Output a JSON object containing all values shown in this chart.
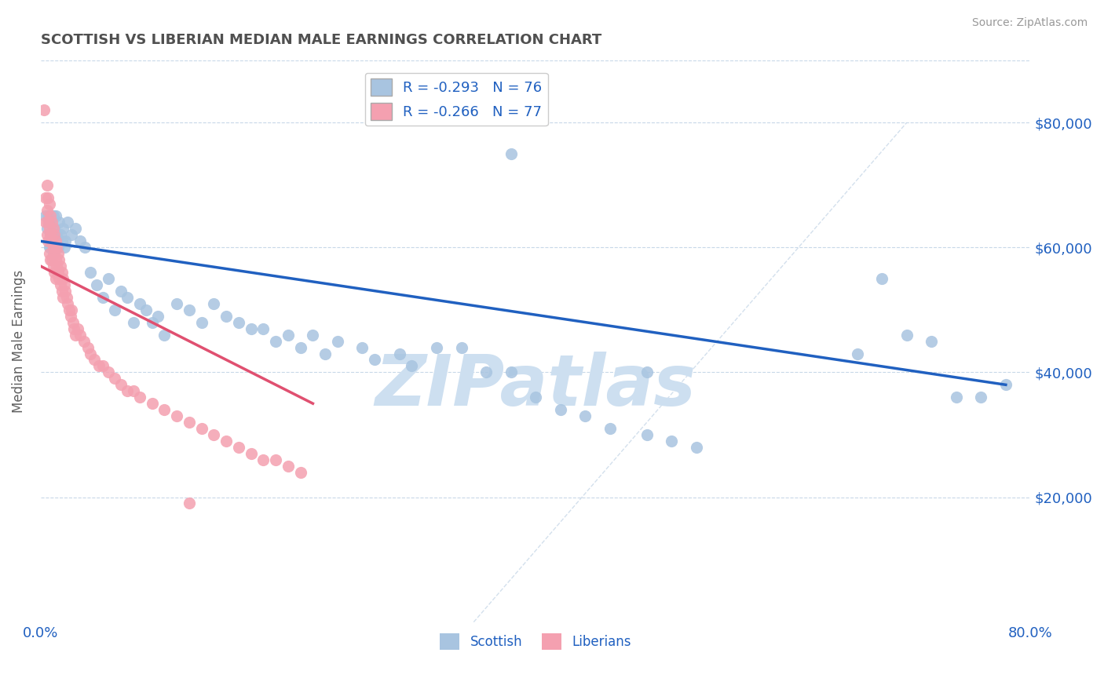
{
  "title": "SCOTTISH VS LIBERIAN MEDIAN MALE EARNINGS CORRELATION CHART",
  "source": "Source: ZipAtlas.com",
  "ylabel": "Median Male Earnings",
  "xlim": [
    0.0,
    0.8
  ],
  "ylim": [
    0,
    90000
  ],
  "yticks": [
    0,
    20000,
    40000,
    60000,
    80000
  ],
  "ytick_labels": [
    "",
    "$20,000",
    "$40,000",
    "$60,000",
    "$80,000"
  ],
  "xticks": [
    0.0,
    0.1,
    0.2,
    0.3,
    0.4,
    0.5,
    0.6,
    0.7,
    0.8
  ],
  "xtick_labels": [
    "0.0%",
    "",
    "",
    "",
    "",
    "",
    "",
    "",
    "80.0%"
  ],
  "scottish_R": -0.293,
  "scottish_N": 76,
  "liberian_R": -0.266,
  "liberian_N": 77,
  "scottish_color": "#a8c4e0",
  "scottish_line_color": "#2060c0",
  "liberian_color": "#f4a0b0",
  "liberian_line_color": "#e05070",
  "legend_text_color": "#2060c0",
  "title_color": "#505050",
  "watermark": "ZIPatlas",
  "watermark_color": "#cddff0",
  "scottish_x": [
    0.004,
    0.005,
    0.006,
    0.007,
    0.007,
    0.008,
    0.008,
    0.009,
    0.01,
    0.01,
    0.011,
    0.012,
    0.013,
    0.014,
    0.015,
    0.016,
    0.017,
    0.018,
    0.019,
    0.02,
    0.022,
    0.025,
    0.028,
    0.032,
    0.036,
    0.04,
    0.045,
    0.05,
    0.055,
    0.06,
    0.065,
    0.07,
    0.075,
    0.08,
    0.085,
    0.09,
    0.095,
    0.1,
    0.11,
    0.12,
    0.13,
    0.14,
    0.15,
    0.16,
    0.17,
    0.18,
    0.19,
    0.2,
    0.21,
    0.22,
    0.23,
    0.24,
    0.26,
    0.27,
    0.29,
    0.3,
    0.32,
    0.34,
    0.36,
    0.38,
    0.4,
    0.42,
    0.44,
    0.46,
    0.49,
    0.51,
    0.53,
    0.38,
    0.66,
    0.68,
    0.7,
    0.72,
    0.74,
    0.49,
    0.76,
    0.78
  ],
  "scottish_y": [
    65000,
    63000,
    65000,
    64000,
    60000,
    62000,
    60000,
    61000,
    59000,
    65000,
    63000,
    65000,
    62000,
    60000,
    64000,
    62000,
    61000,
    63000,
    60000,
    61000,
    64000,
    62000,
    63000,
    61000,
    60000,
    56000,
    54000,
    52000,
    55000,
    50000,
    53000,
    52000,
    48000,
    51000,
    50000,
    48000,
    49000,
    46000,
    51000,
    50000,
    48000,
    51000,
    49000,
    48000,
    47000,
    47000,
    45000,
    46000,
    44000,
    46000,
    43000,
    45000,
    44000,
    42000,
    43000,
    41000,
    44000,
    44000,
    40000,
    40000,
    36000,
    34000,
    33000,
    31000,
    30000,
    29000,
    28000,
    75000,
    43000,
    55000,
    46000,
    45000,
    36000,
    40000,
    36000,
    38000
  ],
  "liberian_x": [
    0.003,
    0.004,
    0.004,
    0.005,
    0.005,
    0.005,
    0.006,
    0.006,
    0.006,
    0.007,
    0.007,
    0.007,
    0.008,
    0.008,
    0.008,
    0.009,
    0.009,
    0.009,
    0.01,
    0.01,
    0.01,
    0.011,
    0.011,
    0.011,
    0.012,
    0.012,
    0.012,
    0.013,
    0.013,
    0.014,
    0.014,
    0.015,
    0.015,
    0.016,
    0.016,
    0.017,
    0.017,
    0.018,
    0.018,
    0.019,
    0.02,
    0.021,
    0.022,
    0.023,
    0.024,
    0.025,
    0.026,
    0.027,
    0.028,
    0.03,
    0.032,
    0.035,
    0.038,
    0.04,
    0.043,
    0.047,
    0.05,
    0.055,
    0.06,
    0.065,
    0.07,
    0.075,
    0.08,
    0.09,
    0.1,
    0.11,
    0.12,
    0.13,
    0.14,
    0.15,
    0.16,
    0.17,
    0.18,
    0.19,
    0.2,
    0.21,
    0.12
  ],
  "liberian_y": [
    82000,
    68000,
    64000,
    70000,
    66000,
    62000,
    68000,
    64000,
    61000,
    67000,
    63000,
    59000,
    65000,
    62000,
    58000,
    64000,
    61000,
    58000,
    63000,
    60000,
    57000,
    62000,
    59000,
    56000,
    61000,
    58000,
    55000,
    60000,
    57000,
    59000,
    56000,
    58000,
    55000,
    57000,
    54000,
    56000,
    53000,
    55000,
    52000,
    54000,
    53000,
    52000,
    51000,
    50000,
    49000,
    50000,
    48000,
    47000,
    46000,
    47000,
    46000,
    45000,
    44000,
    43000,
    42000,
    41000,
    41000,
    40000,
    39000,
    38000,
    37000,
    37000,
    36000,
    35000,
    34000,
    33000,
    32000,
    31000,
    30000,
    29000,
    28000,
    27000,
    26000,
    26000,
    25000,
    24000,
    19000
  ]
}
